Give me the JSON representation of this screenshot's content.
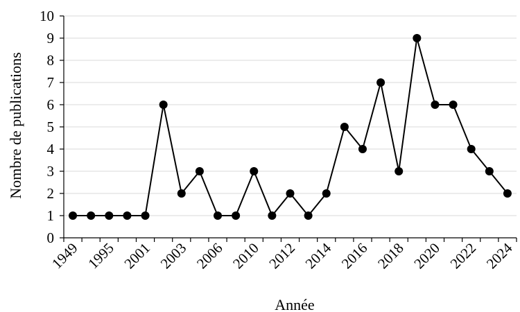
{
  "chart_data": {
    "type": "line",
    "x_tick_labels": [
      "1949",
      "1995",
      "2001",
      "2003",
      "2006",
      "2010",
      "2012",
      "2014",
      "2016",
      "2018",
      "2020",
      "2022",
      "2024"
    ],
    "values": [
      1,
      1,
      1,
      1,
      1,
      6,
      2,
      3,
      1,
      1,
      3,
      1,
      2,
      1,
      2,
      5,
      4,
      7,
      3,
      9,
      6,
      6,
      4,
      3,
      2
    ],
    "xlabel": "Année",
    "ylabel": "Nombre de publications",
    "ylim": [
      0,
      10
    ],
    "y_ticks": [
      0,
      1,
      2,
      3,
      4,
      5,
      6,
      7,
      8,
      9,
      10
    ],
    "grid": true,
    "colors": {
      "line": "#000000",
      "marker": "#000000",
      "grid": "#d9d9d9"
    }
  }
}
